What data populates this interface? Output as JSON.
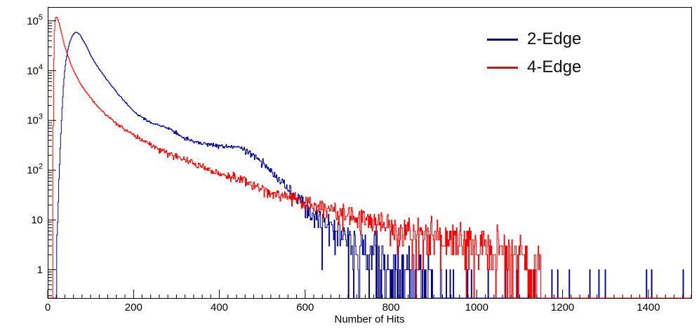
{
  "page": {
    "background": "#ffffff"
  },
  "chart_data": {
    "type": "line",
    "subtype": "histogram-step-log",
    "title": "",
    "grid": false,
    "legend_position": "top-right",
    "noise_seed": 7,
    "bin_width": 1.5,
    "x_axis": {
      "label": "Number of Hits",
      "min": 0,
      "max": 1500,
      "major_tick_step": 200,
      "minor_tick_step": 20,
      "ticks": [
        [
          0,
          "0"
        ],
        [
          200,
          "200"
        ],
        [
          400,
          "400"
        ],
        [
          600,
          "600"
        ],
        [
          800,
          "800"
        ],
        [
          1000,
          "1000"
        ],
        [
          1200,
          "1200"
        ],
        [
          1400,
          "1400"
        ]
      ]
    },
    "y_axis": {
      "scale": "log",
      "min": 0.27,
      "max": 190000,
      "labels": [
        {
          "v": 1,
          "t": "1"
        },
        {
          "v": 10,
          "t": "10"
        },
        {
          "v": 100,
          "t": "10",
          "sup": "2"
        },
        {
          "v": 1000,
          "t": "10",
          "sup": "3"
        },
        {
          "v": 10000,
          "t": "10",
          "sup": "4"
        },
        {
          "v": 100000,
          "t": "10",
          "sup": "5"
        }
      ]
    },
    "series": [
      {
        "name": "2-Edge",
        "color": "#000099",
        "control_points": [
          [
            17,
            0
          ],
          [
            19,
            0.5
          ],
          [
            22,
            4
          ],
          [
            25,
            30
          ],
          [
            28,
            150
          ],
          [
            31,
            600
          ],
          [
            34,
            2000
          ],
          [
            37,
            5200
          ],
          [
            40,
            10500
          ],
          [
            43,
            17000
          ],
          [
            46,
            24000
          ],
          [
            50,
            34000
          ],
          [
            54,
            43000
          ],
          [
            58,
            51000
          ],
          [
            62,
            56500
          ],
          [
            65,
            59000
          ],
          [
            68,
            58500
          ],
          [
            72,
            56000
          ],
          [
            76,
            52000
          ],
          [
            80,
            44000
          ],
          [
            85,
            37500
          ],
          [
            90,
            31500
          ],
          [
            95,
            25500
          ],
          [
            100,
            20500
          ],
          [
            110,
            14500
          ],
          [
            120,
            10800
          ],
          [
            130,
            8100
          ],
          [
            140,
            6200
          ],
          [
            150,
            4800
          ],
          [
            160,
            3750
          ],
          [
            170,
            2950
          ],
          [
            180,
            2350
          ],
          [
            190,
            1900
          ],
          [
            200,
            1560
          ],
          [
            210,
            1320
          ],
          [
            220,
            1150
          ],
          [
            230,
            1010
          ],
          [
            240,
            915
          ],
          [
            250,
            840
          ],
          [
            260,
            790
          ],
          [
            270,
            755
          ],
          [
            280,
            700
          ],
          [
            290,
            625
          ],
          [
            300,
            545
          ],
          [
            310,
            480
          ],
          [
            320,
            435
          ],
          [
            330,
            405
          ],
          [
            340,
            385
          ],
          [
            355,
            360
          ],
          [
            370,
            340
          ],
          [
            385,
            322
          ],
          [
            400,
            310
          ],
          [
            412,
            302
          ],
          [
            424,
            296
          ],
          [
            436,
            290
          ],
          [
            448,
            280
          ],
          [
            458,
            262
          ],
          [
            468,
            238
          ],
          [
            478,
            205
          ],
          [
            488,
            172
          ],
          [
            496,
            145
          ],
          [
            502,
            148
          ],
          [
            508,
            128
          ],
          [
            515,
            105
          ],
          [
            522,
            92
          ],
          [
            530,
            78
          ],
          [
            538,
            67
          ],
          [
            546,
            58
          ],
          [
            554,
            50
          ],
          [
            562,
            43
          ],
          [
            570,
            37
          ],
          [
            578,
            31.5
          ],
          [
            586,
            27
          ],
          [
            594,
            23
          ],
          [
            602,
            19.5
          ],
          [
            612,
            16
          ],
          [
            622,
            13.2
          ],
          [
            632,
            11
          ],
          [
            642,
            9.2
          ],
          [
            652,
            7.8
          ],
          [
            662,
            6.6
          ],
          [
            672,
            5.6
          ],
          [
            682,
            4.9
          ],
          [
            692,
            4.4
          ],
          [
            700,
            4.1
          ],
          [
            715,
            3.4
          ],
          [
            730,
            2.85
          ],
          [
            745,
            2.4
          ],
          [
            760,
            2.05
          ],
          [
            775,
            1.75
          ],
          [
            790,
            1.5
          ],
          [
            805,
            1.28
          ],
          [
            820,
            1.08
          ],
          [
            835,
            0.92
          ],
          [
            850,
            0.78
          ],
          [
            865,
            0.66
          ],
          [
            880,
            0.55
          ],
          [
            895,
            0.46
          ],
          [
            910,
            0.36
          ],
          [
            925,
            0.27
          ],
          [
            940,
            0.2
          ],
          [
            955,
            0.15
          ],
          [
            970,
            0.12
          ],
          [
            985,
            0.1
          ],
          [
            1000,
            0.09
          ],
          [
            1030,
            0.06
          ],
          [
            1060,
            0.04
          ],
          [
            1090,
            0.028
          ],
          [
            1120,
            0.02
          ],
          [
            1150,
            0.014
          ],
          [
            1156,
            0
          ]
        ],
        "extra_spikes": [
          [
            1175,
            1
          ],
          [
            1189,
            1
          ],
          [
            1216,
            1
          ],
          [
            1263,
            1
          ],
          [
            1284,
            1
          ],
          [
            1299,
            1
          ],
          [
            1396,
            1
          ],
          [
            1408,
            1
          ],
          [
            1481,
            1
          ]
        ]
      },
      {
        "name": "4-Edge",
        "color": "#ff0000",
        "control_points": [
          [
            11,
            0
          ],
          [
            12,
            60
          ],
          [
            13,
            1800
          ],
          [
            14,
            13000
          ],
          [
            15,
            40000
          ],
          [
            16,
            76000
          ],
          [
            17,
            100000
          ],
          [
            18,
            113000
          ],
          [
            19,
            118500
          ],
          [
            20,
            120000
          ],
          [
            21,
            119000
          ],
          [
            22,
            115500
          ],
          [
            24,
            106000
          ],
          [
            26,
            93000
          ],
          [
            28,
            80000
          ],
          [
            30,
            67500
          ],
          [
            32,
            57000
          ],
          [
            34,
            48500
          ],
          [
            36,
            41500
          ],
          [
            38,
            35800
          ],
          [
            40,
            31000
          ],
          [
            43,
            25300
          ],
          [
            46,
            21000
          ],
          [
            49,
            17700
          ],
          [
            52,
            15000
          ],
          [
            55,
            12900
          ],
          [
            58,
            11200
          ],
          [
            62,
            9400
          ],
          [
            66,
            8000
          ],
          [
            70,
            6900
          ],
          [
            75,
            5800
          ],
          [
            80,
            4950
          ],
          [
            85,
            4250
          ],
          [
            90,
            3700
          ],
          [
            95,
            3230
          ],
          [
            100,
            2850
          ],
          [
            108,
            2330
          ],
          [
            116,
            1950
          ],
          [
            124,
            1650
          ],
          [
            132,
            1410
          ],
          [
            140,
            1220
          ],
          [
            150,
            1030
          ],
          [
            160,
            880
          ],
          [
            170,
            760
          ],
          [
            180,
            660
          ],
          [
            190,
            580
          ],
          [
            200,
            515
          ],
          [
            212,
            445
          ],
          [
            224,
            390
          ],
          [
            236,
            345
          ],
          [
            248,
            305
          ],
          [
            260,
            272
          ],
          [
            272,
            244
          ],
          [
            284,
            220
          ],
          [
            296,
            200
          ],
          [
            310,
            176
          ],
          [
            325,
            154
          ],
          [
            340,
            136
          ],
          [
            355,
            121
          ],
          [
            370,
            108
          ],
          [
            385,
            97
          ],
          [
            400,
            88
          ],
          [
            415,
            80
          ],
          [
            430,
            73
          ],
          [
            445,
            66
          ],
          [
            460,
            60
          ],
          [
            475,
            54
          ],
          [
            490,
            47
          ],
          [
            500,
            41
          ],
          [
            520,
            37
          ],
          [
            540,
            33
          ],
          [
            560,
            29.5
          ],
          [
            580,
            26
          ],
          [
            600,
            23
          ],
          [
            620,
            20
          ],
          [
            640,
            17.8
          ],
          [
            660,
            15.8
          ],
          [
            680,
            14
          ],
          [
            700,
            12.5
          ],
          [
            720,
            11.2
          ],
          [
            740,
            10
          ],
          [
            760,
            9
          ],
          [
            780,
            8.2
          ],
          [
            800,
            7.4
          ],
          [
            825,
            6.6
          ],
          [
            850,
            5.9
          ],
          [
            875,
            5.3
          ],
          [
            900,
            4.7
          ],
          [
            925,
            4.2
          ],
          [
            950,
            3.8
          ],
          [
            975,
            3.4
          ],
          [
            1000,
            3.0
          ],
          [
            1025,
            2.7
          ],
          [
            1050,
            2.4
          ],
          [
            1075,
            2.1
          ],
          [
            1100,
            1.9
          ],
          [
            1115,
            1.7
          ],
          [
            1130,
            1.4
          ],
          [
            1140,
            1.1
          ],
          [
            1148,
            0.7
          ],
          [
            1155,
            0.25
          ],
          [
            1160,
            0
          ]
        ],
        "extra_spikes": []
      }
    ]
  }
}
